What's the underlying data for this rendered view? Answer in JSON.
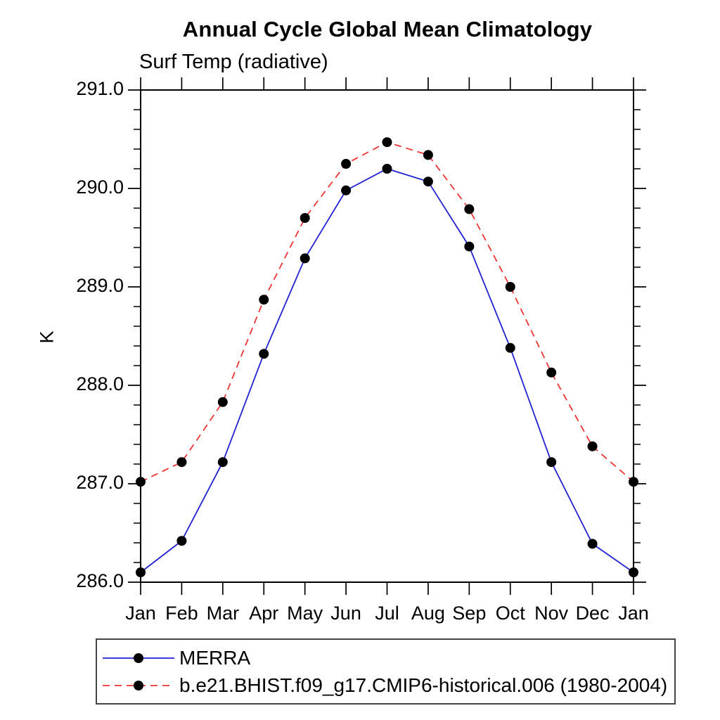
{
  "chart_data": {
    "type": "line",
    "title": "Annual Cycle Global Mean Climatology",
    "subtitle": "Surf Temp (radiative)",
    "ylabel": "K",
    "xlabel": "",
    "categories": [
      "Jan",
      "Feb",
      "Mar",
      "Apr",
      "May",
      "Jun",
      "Jul",
      "Aug",
      "Sep",
      "Oct",
      "Nov",
      "Dec",
      "Jan"
    ],
    "ylim": [
      286.0,
      291.0
    ],
    "y_tick_labels": [
      "291.0",
      "290.0",
      "289.0",
      "288.0",
      "287.0",
      "286.0"
    ],
    "y_major_interval": 1.0,
    "y_minor_interval": 0.2,
    "grid": false,
    "legend_position": "bottom-left-box",
    "axis_color": "#000000",
    "marker_color": "#000000",
    "series": [
      {
        "name": "MERRA",
        "color": "#2121d4",
        "line_style": "solid",
        "marker": "circle",
        "values": [
          286.1,
          286.42,
          287.22,
          288.32,
          289.29,
          289.98,
          290.2,
          290.07,
          289.41,
          288.38,
          287.22,
          286.39,
          286.1
        ]
      },
      {
        "name": "b.e21.BHIST.f09_g17.CMIP6-historical.006 (1980-2004)",
        "color": "#ee3333",
        "line_style": "dashed",
        "marker": "circle",
        "values": [
          287.02,
          287.22,
          287.83,
          288.87,
          289.7,
          290.25,
          290.47,
          290.34,
          289.79,
          289.0,
          288.13,
          287.38,
          287.02
        ]
      }
    ]
  }
}
